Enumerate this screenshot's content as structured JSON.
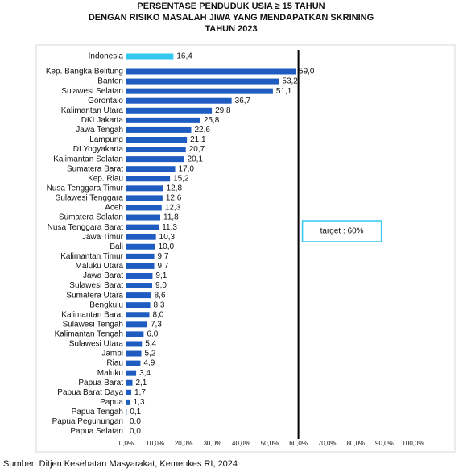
{
  "chart_data": {
    "type": "bar",
    "title": [
      "PERSENTASE PENDUDUK USIA ≥ 15  TAHUN",
      "DENGAN RISIKO MASALAH  JIWA YANG MENDAPATKAN SKRINING",
      "TAHUN 2023"
    ],
    "source": "Sumber: Ditjen Kesehatan Masyarakat, Kemenkes RI, 2024",
    "categories": [
      "Indonesia",
      "Kep. Bangka Belitung",
      "Banten",
      "Sulawesi Selatan",
      "Gorontalo",
      "Kalimantan Utara",
      "DKI Jakarta",
      "Jawa Tengah",
      "Lampung",
      "DI Yogyakarta",
      "Kalimantan Selatan",
      "Sumatera Barat",
      "Kep. Riau",
      "Nusa Tenggara Timur",
      "Sulawesi Tenggara",
      "Aceh",
      "Sumatera Selatan",
      "Nusa Tenggara Barat",
      "Jawa Timur",
      "Bali",
      "Kalimantan Timur",
      "Maluku Utara",
      "Jawa Barat",
      "Sulawesi Barat",
      "Sumatera Utara",
      "Bengkulu",
      "Kalimantan Barat",
      "Sulawesi Tengah",
      "Kalimantan Tengah",
      "Sulawesi Utara",
      "Jambi",
      "Riau",
      "Maluku",
      "Papua Barat",
      "Papua Barat Daya",
      "Papua",
      "Papua Tengah",
      "Papua Pegunungan",
      "Papua Selatan"
    ],
    "values": [
      16.4,
      59.0,
      53.2,
      51.1,
      36.7,
      29.8,
      25.8,
      22.6,
      21.1,
      20.7,
      20.1,
      17.0,
      15.2,
      12.8,
      12.6,
      12.3,
      11.8,
      11.3,
      10.3,
      10.0,
      9.7,
      9.7,
      9.1,
      9.0,
      8.6,
      8.3,
      8.0,
      7.3,
      6.0,
      5.4,
      5.2,
      4.9,
      3.4,
      2.1,
      1.7,
      1.3,
      0.1,
      0.0,
      0.0
    ],
    "value_labels": [
      "16,4",
      "59,0",
      "53,2",
      "51,1",
      "36,7",
      "29,8",
      "25,8",
      "22,6",
      "21,1",
      "20,7",
      "20,1",
      "17,0",
      "15,2",
      "12,8",
      "12,6",
      "12,3",
      "11,8",
      "11,3",
      "10,3",
      "10,0",
      "9,7",
      "9,7",
      "9,1",
      "9,0",
      "8,6",
      "8,3",
      "8,0",
      "7,3",
      "6,0",
      "5,4",
      "5,2",
      "4,9",
      "3,4",
      "2,1",
      "1,7",
      "1,3",
      "0,1",
      "0,0",
      "0,0"
    ],
    "colors": [
      "#35c8ef",
      "#1f5cc2",
      "#1f5cc2",
      "#1f5cc2",
      "#1f5cc2",
      "#1f5cc2",
      "#1f5cc2",
      "#1f5cc2",
      "#1f5cc2",
      "#1f5cc2",
      "#1f5cc2",
      "#1f5cc2",
      "#1f5cc2",
      "#1f5cc2",
      "#1f5cc2",
      "#1f5cc2",
      "#1f5cc2",
      "#1f5cc2",
      "#1f5cc2",
      "#1f5cc2",
      "#1f5cc2",
      "#1f5cc2",
      "#1f5cc2",
      "#1f5cc2",
      "#1f5cc2",
      "#1f5cc2",
      "#1f5cc2",
      "#1f5cc2",
      "#1f5cc2",
      "#1f5cc2",
      "#1f5cc2",
      "#1f5cc2",
      "#1f5cc2",
      "#1f5cc2",
      "#1f5cc2",
      "#1f5cc2",
      "#1f5cc2",
      "#1f5cc2",
      "#1f5cc2"
    ],
    "xlim": [
      0,
      100
    ],
    "xticks": [
      {
        "value": 0,
        "label": "0,0%"
      },
      {
        "value": 10,
        "label": "10,0%"
      },
      {
        "value": 20,
        "label": "20,0%"
      },
      {
        "value": 30,
        "label": "30,0%"
      },
      {
        "value": 40,
        "label": "40,0%"
      },
      {
        "value": 50,
        "label": "50,0%"
      },
      {
        "value": 60,
        "label": "60,0%"
      },
      {
        "value": 70,
        "label": "70,0%"
      },
      {
        "value": 80,
        "label": "80,0%"
      },
      {
        "value": 90,
        "label": "90,0%"
      },
      {
        "value": 100,
        "label": "100,0%"
      }
    ],
    "annotations": [
      {
        "text": "target : 60%",
        "x": 60
      }
    ]
  }
}
